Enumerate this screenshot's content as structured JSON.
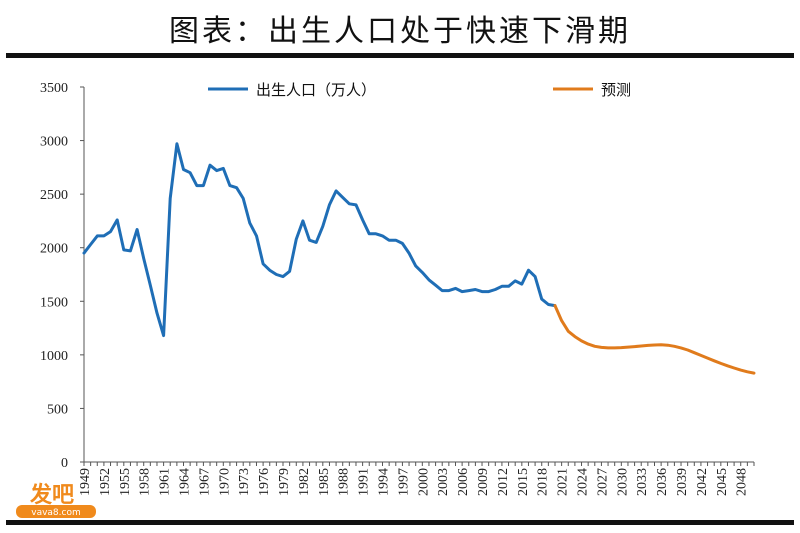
{
  "title": "图表：出生人口处于快速下滑期",
  "watermark": {
    "brand": "发吧",
    "site": "vava8.com"
  },
  "colors": {
    "actual": "#1f6eb6",
    "forecast": "#e07b1c"
  },
  "chart_data": {
    "type": "line",
    "xlim": [
      1949,
      2050
    ],
    "ylim": [
      0,
      3500
    ],
    "yticks": [
      0,
      500,
      1000,
      1500,
      2000,
      2500,
      3000,
      3500
    ],
    "xticks": [
      "1949",
      "1952",
      "1955",
      "1958",
      "1961",
      "1964",
      "1967",
      "1970",
      "1973",
      "1976",
      "1979",
      "1982",
      "1985",
      "1988",
      "1991",
      "1994",
      "1997",
      "2000",
      "2003",
      "2006",
      "2009",
      "2012",
      "2015",
      "2018",
      "2021",
      "2024",
      "2027",
      "2030",
      "2033",
      "2036",
      "2039",
      "2042",
      "2045",
      "2048"
    ],
    "grid": false,
    "legend": "top",
    "series": [
      {
        "name": "出生人口（万人）",
        "x": [
          1949,
          1950,
          1951,
          1952,
          1953,
          1954,
          1955,
          1956,
          1957,
          1958,
          1959,
          1960,
          1961,
          1962,
          1963,
          1964,
          1965,
          1966,
          1967,
          1968,
          1969,
          1970,
          1971,
          1972,
          1973,
          1974,
          1975,
          1976,
          1977,
          1978,
          1979,
          1980,
          1981,
          1982,
          1983,
          1984,
          1985,
          1986,
          1987,
          1988,
          1989,
          1990,
          1991,
          1992,
          1993,
          1994,
          1995,
          1996,
          1997,
          1998,
          1999,
          2000,
          2001,
          2002,
          2003,
          2004,
          2005,
          2006,
          2007,
          2008,
          2009,
          2010,
          2011,
          2012,
          2013,
          2014,
          2015,
          2016,
          2017,
          2018,
          2019,
          2020
        ],
        "values": [
          1950,
          2030,
          2110,
          2110,
          2150,
          2260,
          1980,
          1970,
          2170,
          1900,
          1650,
          1390,
          1180,
          2460,
          2970,
          2730,
          2700,
          2580,
          2580,
          2770,
          2720,
          2740,
          2580,
          2560,
          2460,
          2230,
          2110,
          1850,
          1790,
          1750,
          1730,
          1780,
          2080,
          2250,
          2070,
          2050,
          2200,
          2400,
          2530,
          2470,
          2410,
          2400,
          2260,
          2130,
          2130,
          2110,
          2070,
          2070,
          2040,
          1950,
          1830,
          1770,
          1700,
          1650,
          1600,
          1600,
          1620,
          1590,
          1600,
          1610,
          1590,
          1590,
          1610,
          1640,
          1640,
          1690,
          1660,
          1790,
          1730,
          1520,
          1470,
          1460
        ]
      },
      {
        "name": "预测",
        "x": [
          2020,
          2021,
          2022,
          2023,
          2024,
          2025,
          2026,
          2027,
          2028,
          2029,
          2030,
          2031,
          2032,
          2033,
          2034,
          2035,
          2036,
          2037,
          2038,
          2039,
          2040,
          2041,
          2042,
          2043,
          2044,
          2045,
          2046,
          2047,
          2048,
          2049,
          2050
        ],
        "values": [
          1460,
          1320,
          1220,
          1170,
          1130,
          1100,
          1080,
          1070,
          1065,
          1065,
          1068,
          1072,
          1077,
          1083,
          1088,
          1092,
          1094,
          1090,
          1080,
          1065,
          1045,
          1020,
          995,
          970,
          945,
          920,
          898,
          877,
          858,
          842,
          830
        ]
      }
    ]
  }
}
